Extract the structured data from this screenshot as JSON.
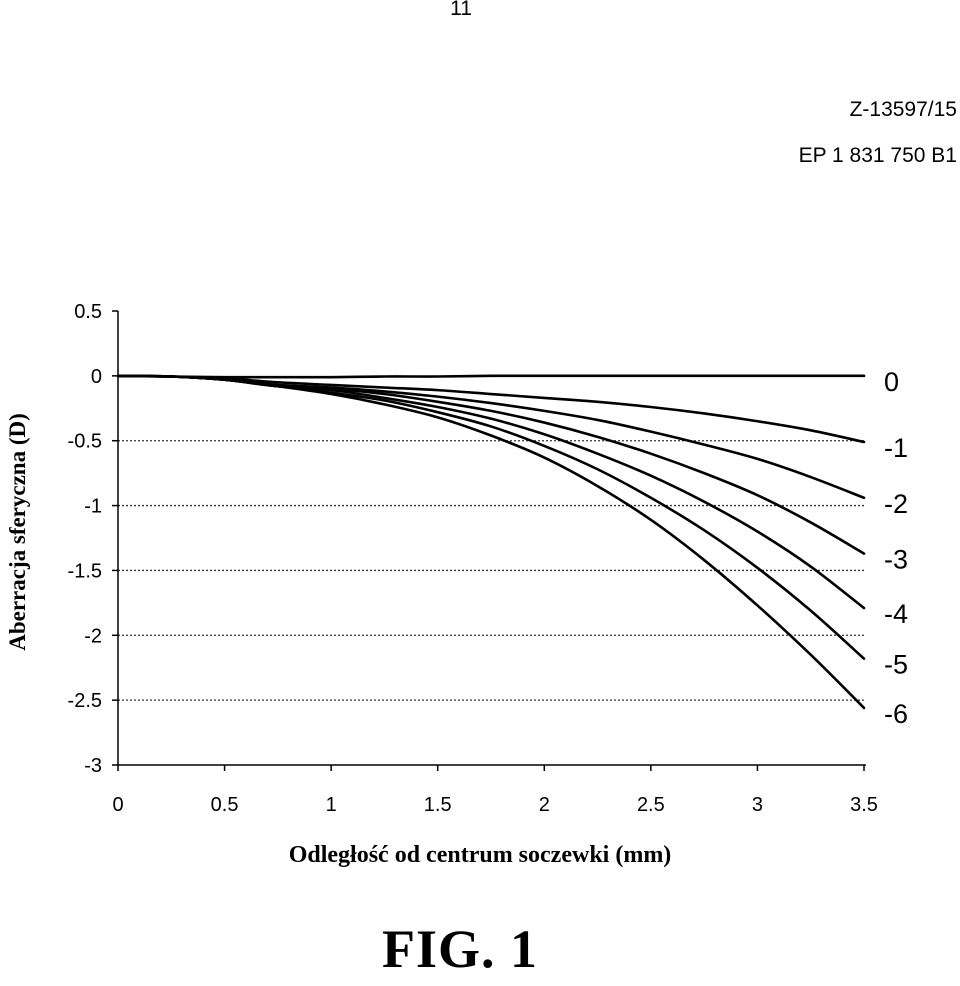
{
  "header": {
    "page_number": "11",
    "ref_line_1": "Z-13597/15",
    "ref_line_2": "EP 1 831 750 B1"
  },
  "figure_label": "FIG. 1",
  "chart_data": {
    "type": "line",
    "title": "",
    "xlabel": "Odległość od centrum soczewki (mm)",
    "ylabel": "Aberracja sferyczna (D)",
    "xlim": [
      0,
      3.5
    ],
    "ylim": [
      -3,
      0.5
    ],
    "x_ticks": [
      "0",
      "0.5",
      "1",
      "1.5",
      "2",
      "2.5",
      "3",
      "3.5"
    ],
    "y_ticks": [
      "0.5",
      "0",
      "-0.5",
      "-1",
      "-1.5",
      "-2",
      "-2.5",
      "-3"
    ],
    "grid": "dotted horizontal",
    "legend": "right (end-of-line labels)",
    "x": [
      0,
      0.25,
      0.5,
      0.75,
      1.0,
      1.25,
      1.5,
      1.75,
      2.0,
      2.25,
      2.5,
      2.75,
      3.0,
      3.25,
      3.5
    ],
    "series": [
      {
        "name": "0",
        "values": [
          0,
          -0.005,
          -0.01,
          -0.01,
          -0.01,
          -0.005,
          -0.005,
          0,
          0,
          0,
          0,
          0,
          0,
          0,
          0
        ]
      },
      {
        "name": "-1",
        "values": [
          0,
          -0.005,
          -0.02,
          -0.05,
          -0.07,
          -0.09,
          -0.11,
          -0.14,
          -0.17,
          -0.2,
          -0.24,
          -0.29,
          -0.35,
          -0.42,
          -0.51
        ]
      },
      {
        "name": "-2",
        "values": [
          0,
          -0.005,
          -0.03,
          -0.07,
          -0.09,
          -0.12,
          -0.16,
          -0.21,
          -0.27,
          -0.34,
          -0.43,
          -0.53,
          -0.64,
          -0.78,
          -0.94
        ]
      },
      {
        "name": "-3",
        "values": [
          0,
          -0.005,
          -0.03,
          -0.08,
          -0.1,
          -0.14,
          -0.2,
          -0.27,
          -0.36,
          -0.47,
          -0.6,
          -0.75,
          -0.92,
          -1.13,
          -1.37
        ]
      },
      {
        "name": "-4",
        "values": [
          0,
          -0.005,
          -0.03,
          -0.08,
          -0.11,
          -0.17,
          -0.24,
          -0.33,
          -0.45,
          -0.6,
          -0.77,
          -0.97,
          -1.2,
          -1.47,
          -1.79
        ]
      },
      {
        "name": "-5",
        "values": [
          0,
          -0.005,
          -0.03,
          -0.08,
          -0.13,
          -0.19,
          -0.28,
          -0.39,
          -0.54,
          -0.72,
          -0.94,
          -1.19,
          -1.48,
          -1.81,
          -2.18
        ]
      },
      {
        "name": "-6",
        "values": [
          0,
          -0.005,
          -0.03,
          -0.08,
          -0.14,
          -0.22,
          -0.32,
          -0.46,
          -0.63,
          -0.85,
          -1.11,
          -1.42,
          -1.77,
          -2.15,
          -2.56
        ]
      }
    ]
  }
}
